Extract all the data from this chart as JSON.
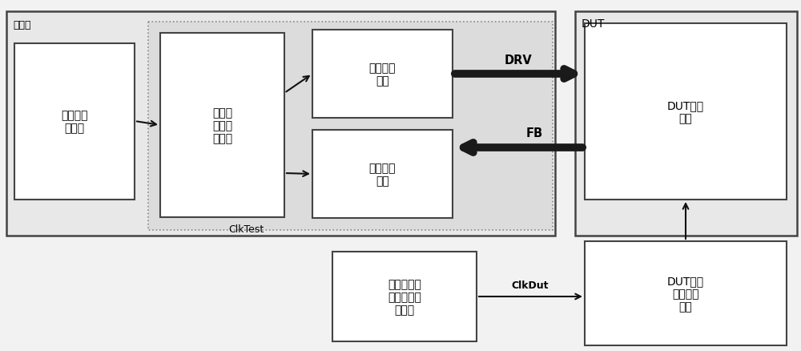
{
  "bg_color": "#f2f2f2",
  "box_fill": "#ffffff",
  "tester_fill": "#e8e8e8",
  "dut_fill": "#e8e8e8",
  "inner_fill": "#dcdcdc",
  "edge_color": "#444444",
  "edge_color_light": "#888888",
  "arrow_color": "#111111",
  "thick_arrow_color": "#1a1a1a",
  "tester_label": "测试仪",
  "dut_label": "DUT",
  "box_main_clock": "主时钟产\n生电路",
  "box_sub_module": "子模块\n电路产\n生电路",
  "box_excite": "激励产生\n电路",
  "box_signal": "信号监测\n电路",
  "box_dut_work": "DUT工作\n电路",
  "box_crystal": "石英晶体或\n其他第三方\n时钟源",
  "box_dut_ctrl": "DUT控制\n时钟分频\n电路",
  "label_drv": "DRV",
  "label_fb": "FB",
  "label_clktest": "ClkTest",
  "label_clkdut": "ClkDut",
  "font_size_main": 10,
  "font_size_label": 9,
  "font_size_small": 8.5
}
